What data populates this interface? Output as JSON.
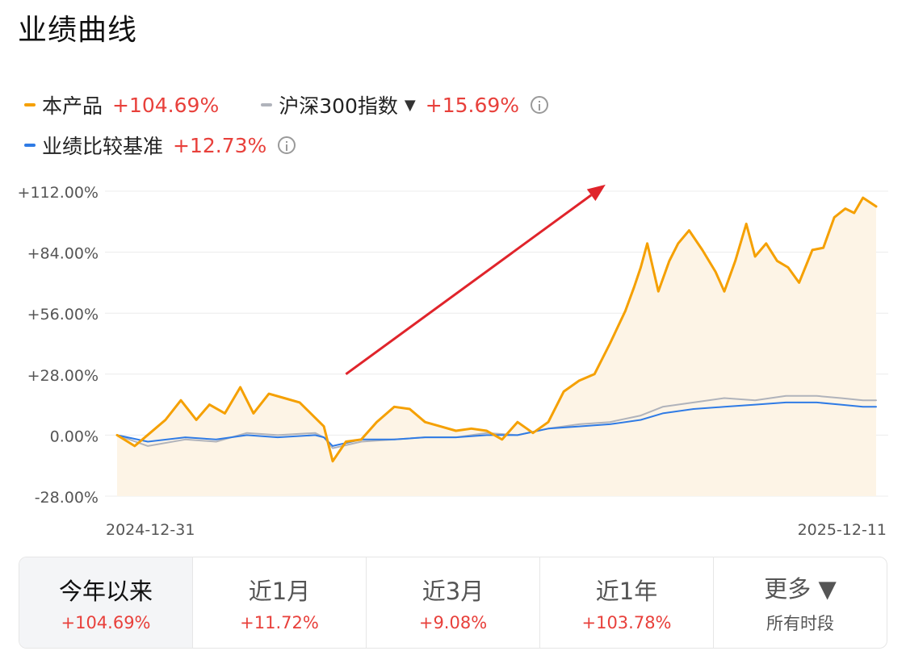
{
  "title": "业绩曲线",
  "legend": [
    {
      "name": "本产品",
      "value": "+104.69%",
      "color": "#f5a000",
      "dropdown": false,
      "info": false
    },
    {
      "name": "沪深300指数",
      "value": "+15.69%",
      "color": "#b0b3bb",
      "dropdown": true,
      "info": true
    },
    {
      "name": "业绩比较基准",
      "value": "+12.73%",
      "color": "#2f7be5",
      "dropdown": false,
      "info": true
    }
  ],
  "dropdown_icon": "▼",
  "tabs": [
    {
      "label": "今年以来",
      "value": "+104.69%",
      "active": true
    },
    {
      "label": "近1月",
      "value": "+11.72%",
      "active": false
    },
    {
      "label": "近3月",
      "value": "+9.08%",
      "active": false
    },
    {
      "label": "近1年",
      "value": "+103.78%",
      "active": false
    },
    {
      "label": "更多 ▼",
      "sub": "所有时段",
      "active": false
    }
  ],
  "chart_data": {
    "type": "line",
    "x_start": "2024-12-31",
    "x_end": "2025-12-11",
    "x_tick_labels": [
      "2024-12-31",
      "2025-12-11"
    ],
    "y_ticks": [
      112,
      84,
      56,
      28,
      0,
      -28
    ],
    "y_tick_labels": [
      "+112.00%",
      "+84.00%",
      "+56.00%",
      "+28.00%",
      "0.00%",
      "-28.00%"
    ],
    "ylim": [
      -28,
      112
    ],
    "grid": true,
    "area_fill_series": "本产品",
    "annotation": {
      "type": "arrow",
      "color": "#e0242b",
      "from": [
        "2025-04-14",
        28
      ],
      "to": [
        "2025-08-10",
        115
      ]
    },
    "series": [
      {
        "name": "本产品",
        "color": "#f5a000",
        "points": [
          [
            "2024-12-31",
            0
          ],
          [
            "2025-01-08",
            -5
          ],
          [
            "2025-01-15",
            1
          ],
          [
            "2025-01-22",
            7
          ],
          [
            "2025-01-29",
            16
          ],
          [
            "2025-02-05",
            7
          ],
          [
            "2025-02-11",
            14
          ],
          [
            "2025-02-18",
            10
          ],
          [
            "2025-02-25",
            22
          ],
          [
            "2025-03-03",
            10
          ],
          [
            "2025-03-10",
            19
          ],
          [
            "2025-03-17",
            17
          ],
          [
            "2025-03-24",
            15
          ],
          [
            "2025-03-31",
            8
          ],
          [
            "2025-04-04",
            4
          ],
          [
            "2025-04-08",
            -12
          ],
          [
            "2025-04-14",
            -3
          ],
          [
            "2025-04-21",
            -2
          ],
          [
            "2025-04-28",
            6
          ],
          [
            "2025-05-06",
            13
          ],
          [
            "2025-05-13",
            12
          ],
          [
            "2025-05-20",
            6
          ],
          [
            "2025-05-27",
            4
          ],
          [
            "2025-06-03",
            2
          ],
          [
            "2025-06-10",
            3
          ],
          [
            "2025-06-17",
            2
          ],
          [
            "2025-06-24",
            -2
          ],
          [
            "2025-07-01",
            6
          ],
          [
            "2025-07-08",
            1
          ],
          [
            "2025-07-15",
            6
          ],
          [
            "2025-07-22",
            20
          ],
          [
            "2025-07-29",
            25
          ],
          [
            "2025-08-05",
            28
          ],
          [
            "2025-08-12",
            42
          ],
          [
            "2025-08-19",
            57
          ],
          [
            "2025-08-23",
            68
          ],
          [
            "2025-08-26",
            77
          ],
          [
            "2025-08-29",
            88
          ],
          [
            "2025-09-03",
            66
          ],
          [
            "2025-09-08",
            80
          ],
          [
            "2025-09-12",
            88
          ],
          [
            "2025-09-17",
            94
          ],
          [
            "2025-09-23",
            85
          ],
          [
            "2025-09-29",
            75
          ],
          [
            "2025-10-03",
            66
          ],
          [
            "2025-10-08",
            80
          ],
          [
            "2025-10-13",
            97
          ],
          [
            "2025-10-17",
            82
          ],
          [
            "2025-10-22",
            88
          ],
          [
            "2025-10-27",
            80
          ],
          [
            "2025-11-01",
            77
          ],
          [
            "2025-11-06",
            70
          ],
          [
            "2025-11-12",
            85
          ],
          [
            "2025-11-17",
            86
          ],
          [
            "2025-11-22",
            100
          ],
          [
            "2025-11-27",
            104
          ],
          [
            "2025-12-01",
            102
          ],
          [
            "2025-12-05",
            109
          ],
          [
            "2025-12-11",
            105
          ]
        ]
      },
      {
        "name": "沪深300指数",
        "color": "#b0b3bb",
        "points": [
          [
            "2024-12-31",
            0
          ],
          [
            "2025-01-14",
            -5
          ],
          [
            "2025-01-31",
            -2
          ],
          [
            "2025-02-14",
            -3
          ],
          [
            "2025-02-28",
            1
          ],
          [
            "2025-03-14",
            0
          ],
          [
            "2025-03-31",
            1
          ],
          [
            "2025-04-04",
            -1
          ],
          [
            "2025-04-08",
            -6
          ],
          [
            "2025-04-21",
            -3
          ],
          [
            "2025-05-06",
            -2
          ],
          [
            "2025-05-20",
            -1
          ],
          [
            "2025-06-03",
            -1
          ],
          [
            "2025-06-17",
            1
          ],
          [
            "2025-07-01",
            0
          ],
          [
            "2025-07-15",
            3
          ],
          [
            "2025-07-29",
            5
          ],
          [
            "2025-08-12",
            6
          ],
          [
            "2025-08-26",
            9
          ],
          [
            "2025-09-05",
            13
          ],
          [
            "2025-09-19",
            15
          ],
          [
            "2025-10-03",
            17
          ],
          [
            "2025-10-17",
            16
          ],
          [
            "2025-10-31",
            18
          ],
          [
            "2025-11-14",
            18
          ],
          [
            "2025-11-25",
            17
          ],
          [
            "2025-12-05",
            16
          ],
          [
            "2025-12-11",
            16
          ]
        ]
      },
      {
        "name": "业绩比较基准",
        "color": "#2f7be5",
        "points": [
          [
            "2024-12-31",
            0
          ],
          [
            "2025-01-14",
            -3
          ],
          [
            "2025-01-31",
            -1
          ],
          [
            "2025-02-14",
            -2
          ],
          [
            "2025-02-28",
            0
          ],
          [
            "2025-03-14",
            -1
          ],
          [
            "2025-03-31",
            0
          ],
          [
            "2025-04-04",
            -1
          ],
          [
            "2025-04-08",
            -5
          ],
          [
            "2025-04-21",
            -2
          ],
          [
            "2025-05-06",
            -2
          ],
          [
            "2025-05-20",
            -1
          ],
          [
            "2025-06-03",
            -1
          ],
          [
            "2025-06-17",
            0
          ],
          [
            "2025-07-01",
            0
          ],
          [
            "2025-07-15",
            3
          ],
          [
            "2025-07-29",
            4
          ],
          [
            "2025-08-12",
            5
          ],
          [
            "2025-08-26",
            7
          ],
          [
            "2025-09-05",
            10
          ],
          [
            "2025-09-19",
            12
          ],
          [
            "2025-10-03",
            13
          ],
          [
            "2025-10-17",
            14
          ],
          [
            "2025-10-31",
            15
          ],
          [
            "2025-11-14",
            15
          ],
          [
            "2025-11-25",
            14
          ],
          [
            "2025-12-05",
            13
          ],
          [
            "2025-12-11",
            13
          ]
        ]
      }
    ]
  }
}
